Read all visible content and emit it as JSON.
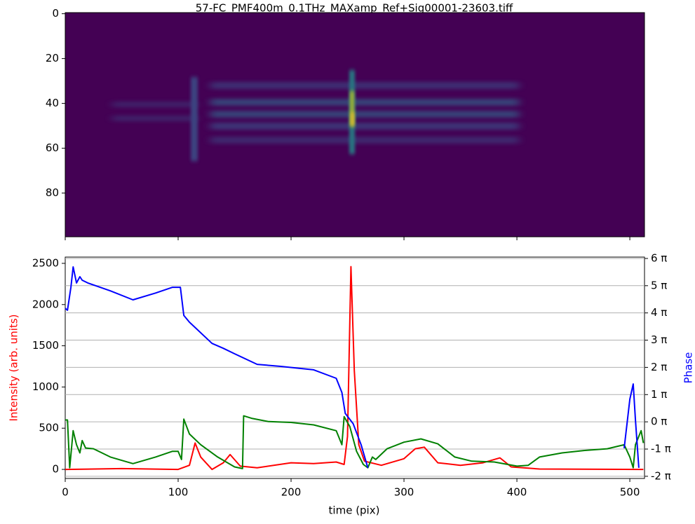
{
  "chart_data": [
    {
      "type": "image",
      "title": "57-FC_PMF400m_0.1THz_MAXamp_Ref+Sig00001-23603.tiff",
      "xlim": [
        0,
        513
      ],
      "xticks": [
        0,
        100,
        200,
        300,
        400,
        500
      ],
      "ylim": [
        99.5,
        -0.5
      ],
      "yticks": [
        0,
        20,
        40,
        60,
        80
      ]
    },
    {
      "type": "line",
      "xlabel": "time (pix)",
      "ylabel": "Intensity (arb. units)",
      "y2label": "Phase",
      "xlim": [
        0,
        513
      ],
      "xticks": [
        0,
        100,
        200,
        300,
        400,
        500
      ],
      "ylim": [
        -110,
        2576
      ],
      "yticks": [
        0,
        500,
        1000,
        1500,
        2000,
        2500
      ],
      "y2lim": [
        -2.08,
        6.05
      ],
      "y2ticks": [
        {
          "value": -2,
          "label": "-2 π"
        },
        {
          "value": -1,
          "label": "-1 π"
        },
        {
          "value": 0,
          "label": "0 π"
        },
        {
          "value": 1,
          "label": "1 π"
        },
        {
          "value": 2,
          "label": "2 π"
        },
        {
          "value": 3,
          "label": "3 π"
        },
        {
          "value": 4,
          "label": "4 π"
        },
        {
          "value": 5,
          "label": "5 π"
        },
        {
          "value": 6,
          "label": "6 π"
        }
      ],
      "grid": "y2",
      "series": [
        {
          "color": "#ff0000",
          "x": [
            0,
            50,
            100,
            110,
            115,
            120,
            130,
            140,
            146,
            155,
            170,
            200,
            220,
            240,
            247,
            250,
            253,
            256,
            260,
            265,
            280,
            300,
            310,
            318,
            330,
            350,
            370,
            385,
            395,
            420,
            512
          ],
          "values": [
            0,
            10,
            0,
            50,
            320,
            150,
            0,
            80,
            180,
            40,
            20,
            80,
            70,
            90,
            60,
            400,
            2460,
            1200,
            300,
            100,
            50,
            130,
            250,
            270,
            80,
            50,
            80,
            140,
            30,
            5,
            0
          ]
        },
        {
          "color": "#008000",
          "x": [
            0,
            2,
            4,
            7,
            10,
            13,
            15,
            18,
            25,
            40,
            60,
            80,
            95,
            100,
            103,
            105,
            110,
            120,
            135,
            150,
            157,
            158,
            165,
            180,
            200,
            220,
            240,
            245,
            247,
            252,
            258,
            264,
            268,
            272,
            275,
            285,
            300,
            315,
            330,
            345,
            360,
            380,
            400,
            410,
            420,
            440,
            460,
            480,
            495,
            500,
            503,
            505,
            510,
            512
          ],
          "values": [
            600,
            600,
            20,
            470,
            300,
            200,
            350,
            260,
            250,
            150,
            70,
            150,
            220,
            220,
            120,
            610,
            430,
            300,
            150,
            30,
            10,
            650,
            620,
            580,
            570,
            540,
            470,
            300,
            640,
            520,
            220,
            60,
            20,
            150,
            120,
            250,
            330,
            370,
            310,
            150,
            100,
            90,
            40,
            50,
            150,
            200,
            230,
            250,
            300,
            150,
            20,
            300,
            470,
            320
          ]
        },
        {
          "color": "#0000ff",
          "axis": "y2",
          "x": [
            0,
            2,
            5,
            7,
            10,
            13,
            15,
            20,
            40,
            60,
            80,
            95,
            102,
            105,
            110,
            130,
            140,
            150,
            170,
            190,
            220,
            240,
            245,
            248,
            255,
            262,
            268,
            272,
            495,
            500,
            503,
            505,
            508
          ],
          "values": [
            4.17,
            4.1,
            4.94,
            5.69,
            5.1,
            5.33,
            5.2,
            5.1,
            4.81,
            4.48,
            4.73,
            4.94,
            4.94,
            3.91,
            3.66,
            2.88,
            2.7,
            2.5,
            2.11,
            2.04,
            1.91,
            1.6,
            1.08,
            0.31,
            -0.07,
            -0.84,
            -1.69,
            null,
            -0.97,
            0.83,
            1.39,
            0.06,
            -1.69
          ]
        }
      ]
    }
  ]
}
